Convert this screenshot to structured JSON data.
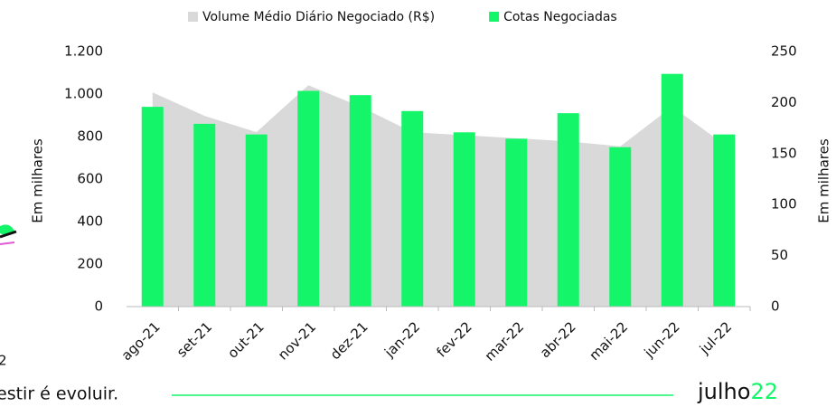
{
  "chart_data": {
    "type": "bar_area",
    "categories": [
      "ago-21",
      "set-21",
      "out-21",
      "nov-21",
      "dez-21",
      "jan-22",
      "fev-22",
      "mar-22",
      "abr-22",
      "mai-22",
      "jun-22",
      "jul-22"
    ],
    "series": [
      {
        "name": "Volume Médio Diário Negociado (R$)",
        "color": "#d9d9d9",
        "type": "area",
        "axis": "y2",
        "values": [
          210,
          187,
          171,
          217,
          196,
          171,
          168,
          165,
          162,
          157,
          196,
          159
        ]
      },
      {
        "name": "Cotas Negociadas",
        "color": "#14f56a",
        "type": "bar",
        "values": [
          940,
          860,
          810,
          1015,
          995,
          920,
          820,
          790,
          910,
          750,
          1095,
          810
        ]
      }
    ],
    "ylim": [
      0,
      1200
    ],
    "yticks": [
      0,
      200,
      400,
      600,
      800,
      {
        "value": 1000,
        "label": "1.000"
      },
      {
        "value": 1200,
        "label": "1.200"
      }
    ],
    "y2lim": [
      0,
      250
    ],
    "y2ticks": [
      0,
      50,
      100,
      150,
      200,
      250
    ],
    "ylabel": "Em milhares",
    "y2label": "Em milhares"
  },
  "footer": {
    "slogan": "estir é evoluir.",
    "brand": "julho",
    "brand_suffix": "22",
    "fragment": "2"
  }
}
